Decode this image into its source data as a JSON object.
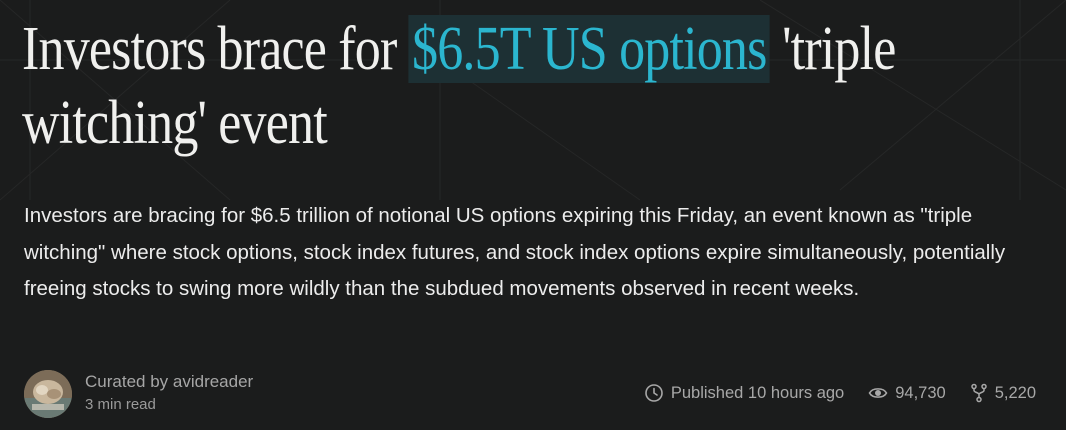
{
  "article": {
    "title_before": "Investors brace for ",
    "title_highlight": "$6.5T US options",
    "title_after": " 'triple witching' event",
    "summary": "Investors are bracing for $6.5 trillion of notional US options expiring this Friday, an event known as \"triple witching\" where stock options, stock index futures, and stock index options expire simultaneously, potentially freeing stocks to swing more wildly than the subdued movements observed in recent weeks."
  },
  "byline": {
    "curator": "Curated by avidreader",
    "read_time": "3 min read"
  },
  "stats": {
    "published": "Published 10 hours ago",
    "views": "94,730",
    "forks": "5,220"
  },
  "icons": {
    "published": "clock-icon",
    "views": "eye-icon",
    "forks": "fork-icon"
  },
  "colors": {
    "background": "#1b1c1c",
    "highlight_text": "#2bb6cf",
    "highlight_bg": "#1d3034"
  }
}
